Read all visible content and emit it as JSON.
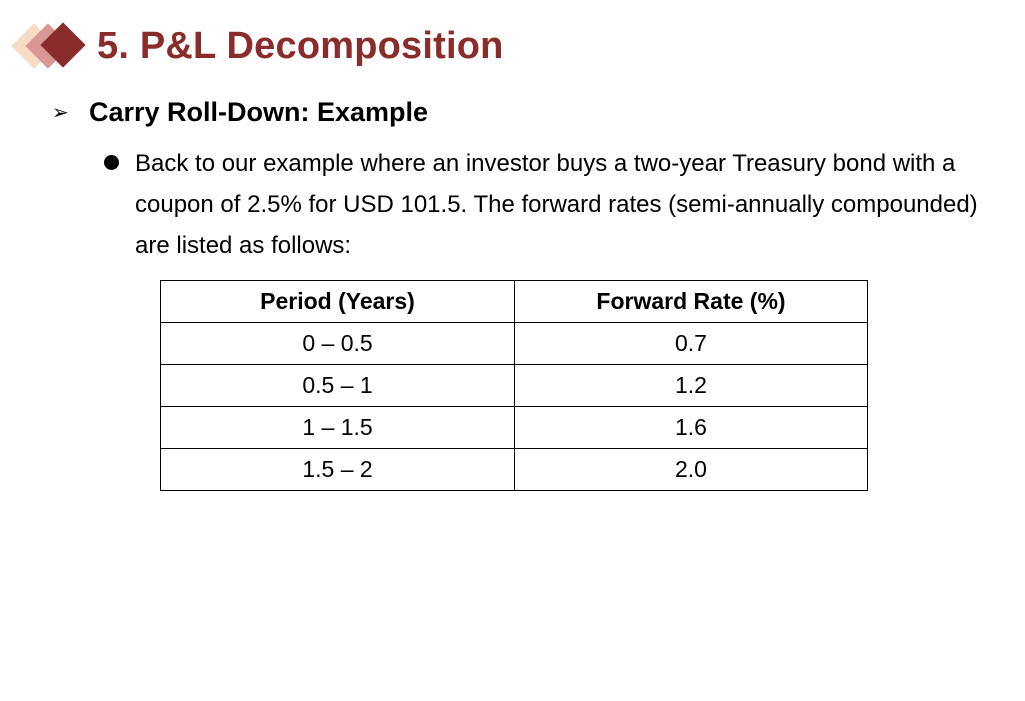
{
  "slide": {
    "title": "5. P&L Decomposition",
    "logo_colors": [
      "#f6dcc4",
      "#d99694",
      "#8b2c2c"
    ],
    "title_color": "#8b2c2c"
  },
  "subheading": {
    "marker": "➢",
    "text": "Carry Roll-Down: Example"
  },
  "bullet": {
    "text": "Back to our example where an investor buys a two-year Treasury bond with a coupon of 2.5% for USD 101.5. The forward rates (semi-annually compounded) are listed as follows:"
  },
  "table": {
    "headers": [
      "Period (Years)",
      "Forward Rate (%)"
    ],
    "rows": [
      [
        "0 – 0.5",
        "0.7"
      ],
      [
        "0.5 – 1",
        "1.2"
      ],
      [
        "1 – 1.5",
        "1.6"
      ],
      [
        "1.5 – 2",
        "2.0"
      ]
    ]
  }
}
